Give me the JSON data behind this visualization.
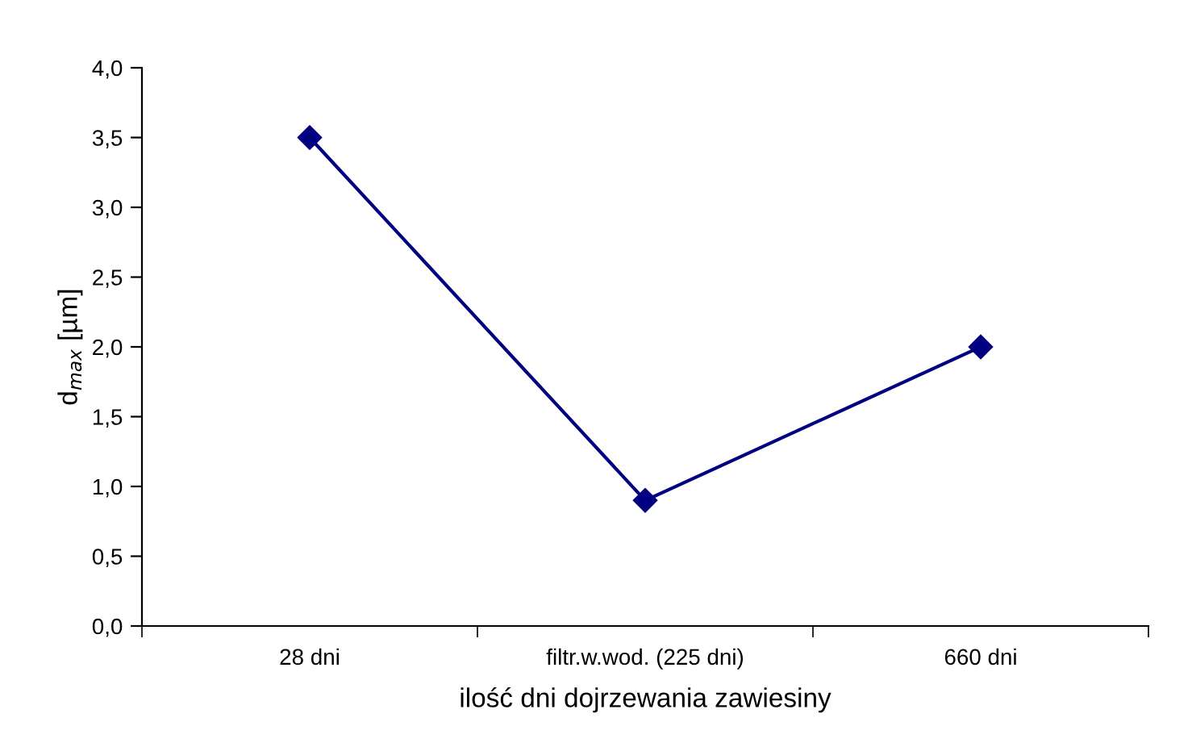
{
  "chart_data": {
    "type": "line",
    "xlabel": "ilość dni dojrzewania zawiesiny",
    "ylabel": "d$_{max}$ [µm]",
    "categories": [
      "28 dni",
      "filtr.w.wod. (225 dni)",
      "660 dni"
    ],
    "series": [
      {
        "color": "#000080",
        "values": [
          3.5,
          0.9,
          2.0
        ]
      }
    ],
    "marker": "diamond",
    "line_style": "solid",
    "grid": false,
    "legend": false,
    "ylim": [
      0,
      4
    ],
    "yticks": [
      {
        "value": 0,
        "label": "0,0"
      },
      {
        "value": 0.5,
        "label": "0,5"
      },
      {
        "value": 1,
        "label": "1,0"
      },
      {
        "value": 1.5,
        "label": "1,5"
      },
      {
        "value": 2,
        "label": "2,0"
      },
      {
        "value": 2.5,
        "label": "2,5"
      },
      {
        "value": 3,
        "label": "3,0"
      },
      {
        "value": 3.5,
        "label": "3,5"
      },
      {
        "value": 4,
        "label": "4,0"
      }
    ]
  }
}
